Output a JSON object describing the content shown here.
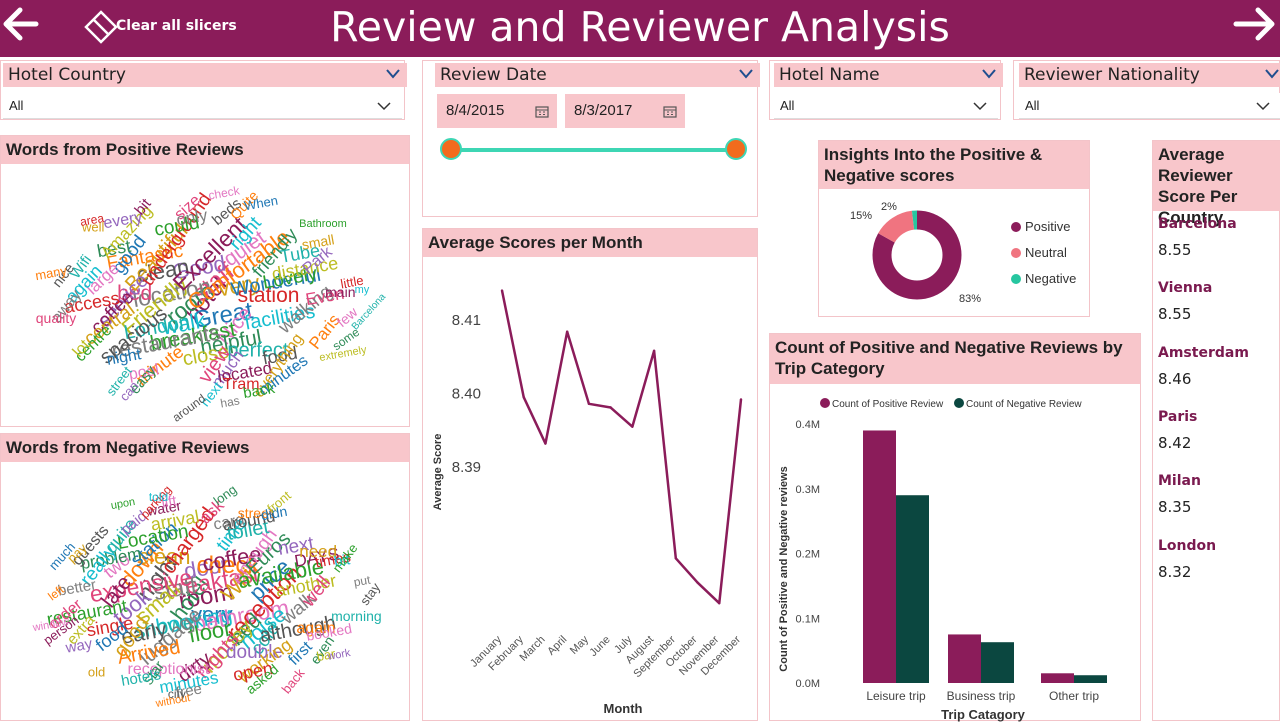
{
  "header": {
    "title": "Review and Reviewer Analysis",
    "clear_label": "Clear all slicers"
  },
  "slicers": {
    "hotel_country": {
      "label": "Hotel Country",
      "value": "All"
    },
    "review_date": {
      "label": "Review Date",
      "start": "8/4/2015",
      "end": "8/3/2017"
    },
    "hotel_name": {
      "label": "Hotel Name",
      "value": "All"
    },
    "reviewer_nationality": {
      "label": "Reviewer Nationality",
      "value": "All"
    }
  },
  "wordclouds": {
    "positive_title": "Words from Positive Reviews",
    "negative_title": "Words from Negative Reviews",
    "positive_words": [
      "hotel",
      "room",
      "staff",
      "Great",
      "location",
      "very",
      "walk",
      "Good",
      "Nice",
      "Friendly",
      "Comfortable",
      "breakfast",
      "clean",
      "station",
      "London",
      "Excellent",
      "helpful",
      "bed",
      "Wonderful",
      "restaurants",
      "Beautiful",
      "facilities",
      "service",
      "quiet",
      "close",
      "Fantastic",
      "Lovely",
      "spacious",
      "underground",
      "perfect",
      "coffee",
      "friendly",
      "view",
      "good",
      "walking",
      "central",
      "right",
      "much",
      "large",
      "distance",
      "minute",
      "could",
      "food",
      "access",
      "Tube",
      "located",
      "best",
      "Even",
      "night",
      "only",
      "everything",
      "again",
      "Park",
      "pool",
      "Amazing",
      "Paris",
      "centre",
      "beds",
      "Tram",
      "Wifi",
      "main",
      "easy",
      "size",
      "minutes",
      "away",
      "small",
      "next",
      "every",
      "few",
      "lot",
      "Quite",
      "back",
      "nice",
      "little",
      "street",
      "bit",
      "some",
      "quality",
      "When",
      "has",
      "well",
      "my",
      "can",
      "check",
      "extremely",
      "many",
      "Bathroom",
      "around",
      "area",
      "Barcelona"
    ],
    "negative_words": [
      "room",
      "hotel",
      "breakfast",
      "very",
      "staff",
      "Wifi",
      "booking",
      "door",
      "bathroom",
      "small",
      "check",
      "floor",
      "night",
      "reception",
      "shower",
      "coffee",
      "bed",
      "expensive",
      "price",
      "luggage",
      "clean",
      "noise",
      "took",
      "enough",
      "money",
      "down",
      "available",
      "early",
      "charged",
      "cold",
      "late",
      "Euros",
      "nights",
      "station",
      "walk",
      "good",
      "time",
      "double",
      "two",
      "another",
      "Arrived",
      "Location",
      "although",
      "single",
      "toilet",
      "dirty",
      "problem",
      "well",
      "food",
      "card",
      "working",
      "really",
      "next",
      "receptionist",
      "arrival",
      "again",
      "restaurant",
      "around",
      "open",
      "quite",
      "DAYS",
      "star",
      "ask",
      "first",
      "better",
      "need",
      "minutes",
      "paid",
      "booked",
      "extra",
      "street",
      "asked",
      "guests",
      "times",
      "hotels",
      "water",
      "even",
      "order",
      "didn",
      "free",
      "pay",
      "bit",
      "way",
      "lift",
      "bar",
      "left",
      "make",
      "city",
      "parking",
      "morning",
      "person",
      "long",
      "back",
      "much",
      "put",
      "old",
      "told",
      "work",
      "window",
      "front",
      "without",
      "upon",
      "stay"
    ],
    "colors": [
      "#8b1c5a",
      "#2e8b57",
      "#e0457b",
      "#1f77b4",
      "#7f7f7f",
      "#d4a017",
      "#17becf",
      "#9467bd",
      "#e377c2",
      "#bcbd22",
      "#ff7f0e",
      "#2ca02c",
      "#555555",
      "#d62728",
      "#20b2aa"
    ]
  },
  "avg_scores": {
    "title": "Average Scores per Month",
    "chart_data": {
      "type": "line",
      "categories": [
        "January",
        "February",
        "March",
        "April",
        "May",
        "June",
        "July",
        "August",
        "September",
        "October",
        "November",
        "December"
      ],
      "values": [
        8.414,
        8.3995,
        8.3932,
        8.4084,
        8.3986,
        8.3981,
        8.3955,
        8.4058,
        8.3776,
        8.3743,
        8.3715,
        8.3992
      ],
      "xlabel": "Month",
      "ylabel": "Average Score",
      "yticks": [
        "8.39",
        "8.40",
        "8.41"
      ],
      "ylim": [
        8.3703,
        8.4172
      ],
      "color": "#8b1c5a",
      "grid": false
    }
  },
  "insights": {
    "title": "Insights Into the Positive & Negative scores",
    "chart_data": {
      "type": "pie",
      "donut": true,
      "labels": [
        "Positive",
        "Neutral",
        "Negative"
      ],
      "values": [
        83,
        15,
        2
      ],
      "data_labels": [
        "83%",
        "15%",
        "2%"
      ],
      "colors": [
        "#8b1c5a",
        "#f07480",
        "#26c6a0"
      ],
      "legend": "right"
    }
  },
  "trip_chart": {
    "title": "Count of Positive and Negative Reviews by Trip Category",
    "chart_data": {
      "type": "bar",
      "categories": [
        "Leisure trip",
        "Business trip",
        "Other trip"
      ],
      "series": [
        {
          "name": "Count of Positive Review",
          "values": [
            0.39,
            0.075,
            0.015
          ],
          "color": "#8b1c5a"
        },
        {
          "name": "Count of Negative Review",
          "values": [
            0.29,
            0.063,
            0.012
          ],
          "color": "#0b4740"
        }
      ],
      "yticks": [
        "0.0M",
        "0.1M",
        "0.2M",
        "0.3M",
        "0.4M"
      ],
      "ylim": [
        0,
        0.4
      ],
      "unit": "M",
      "xlabel": "Trip Catagory",
      "ylabel": "Count of Positive and Negative reviews",
      "legend": "top"
    }
  },
  "country_scores": {
    "title": "Average Reviewer Score Per Country",
    "items": [
      {
        "name": "Barcelona",
        "score": "8.55"
      },
      {
        "name": "Vienna",
        "score": "8.55"
      },
      {
        "name": "Amsterdam",
        "score": "8.46"
      },
      {
        "name": "Paris",
        "score": "8.42"
      },
      {
        "name": "Milan",
        "score": "8.35"
      },
      {
        "name": "London",
        "score": "8.32"
      }
    ]
  }
}
